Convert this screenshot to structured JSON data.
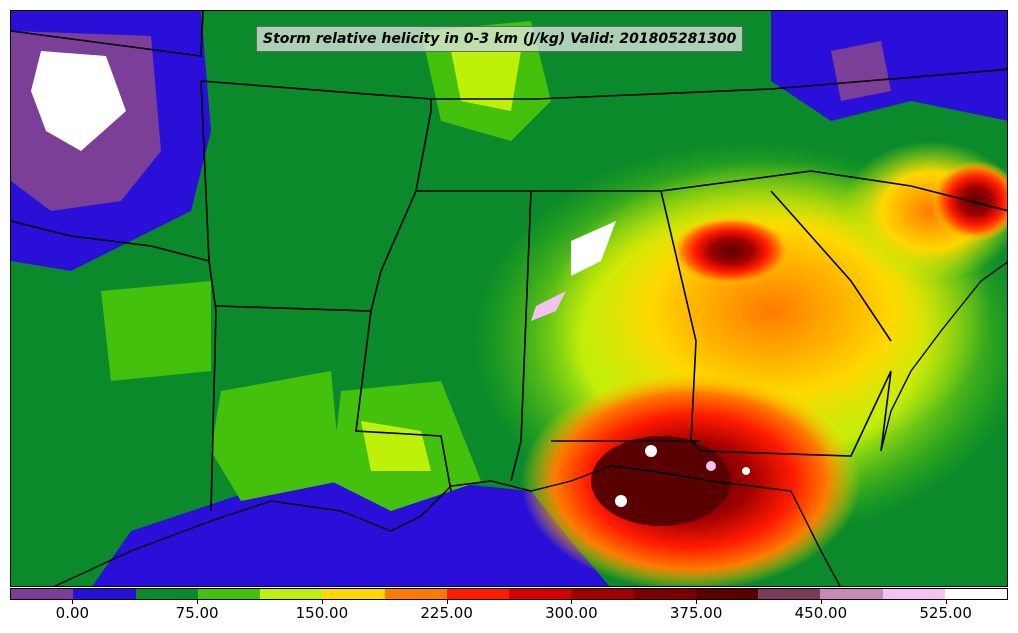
{
  "title": "Storm relative helicity in 0-3 km (J/kg) Valid: 201805281300",
  "colorbar": {
    "colors": [
      "#7b3f98",
      "#2a0fd8",
      "#0a8a2a",
      "#44c10c",
      "#bff00a",
      "#ffd800",
      "#ff7a00",
      "#ff1a00",
      "#d40000",
      "#a00000",
      "#7a0000",
      "#5a0000",
      "#7a3b57",
      "#c78ab4",
      "#f3c3f0",
      "#ffffff"
    ],
    "tick_labels": [
      "0.00",
      "75.00",
      "150.00",
      "225.00",
      "300.00",
      "375.00",
      "450.00",
      "525.00"
    ],
    "range": [
      -37.5,
      562.5
    ]
  },
  "map": {
    "background_color": "#0a8a2a",
    "borders": "state boundaries and coastline"
  }
}
